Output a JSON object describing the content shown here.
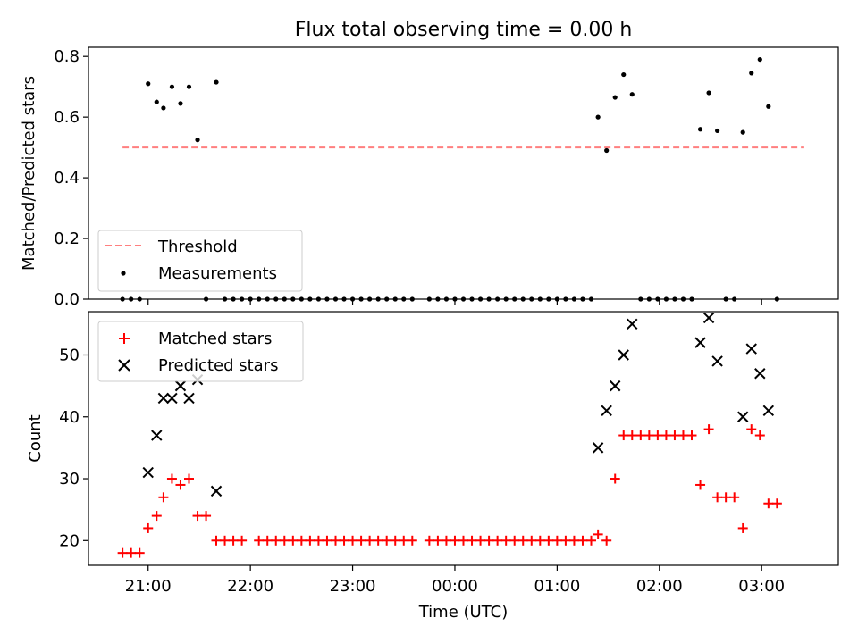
{
  "title": "Flux total observing time = 0.00 h",
  "chart_data": [
    {
      "type": "scatter",
      "title": "Flux total observing time = 0.00 h",
      "xlabel": "",
      "ylabel": "Matched/Predicted stars",
      "ylim": [
        0,
        0.83
      ],
      "yticks": [
        "0.0",
        "0.2",
        "0.4",
        "0.6",
        "0.8"
      ],
      "threshold": {
        "name": "Threshold",
        "value": 0.5,
        "x_start": -195,
        "x_end": 205,
        "color": "#ff7f7f",
        "style": "dashed"
      },
      "series": [
        {
          "name": "Measurements",
          "color": "#000000",
          "marker": "dot",
          "points": [
            [
              -195,
              0
            ],
            [
              -190,
              0
            ],
            [
              -185,
              0
            ],
            [
              -180,
              0.71
            ],
            [
              -175,
              0.65
            ],
            [
              -171,
              0.63
            ],
            [
              -166,
              0.7
            ],
            [
              -161,
              0.645
            ],
            [
              -156,
              0.7
            ],
            [
              -151,
              0.525
            ],
            [
              -146,
              0
            ],
            [
              -140,
              0.715
            ],
            [
              -135,
              0
            ],
            [
              -130,
              0
            ],
            [
              -125,
              0
            ],
            [
              -120,
              0
            ],
            [
              -115,
              0
            ],
            [
              -110,
              0
            ],
            [
              -105,
              0
            ],
            [
              -100,
              0
            ],
            [
              -95,
              0
            ],
            [
              -90,
              0
            ],
            [
              -85,
              0
            ],
            [
              -80,
              0
            ],
            [
              -75,
              0
            ],
            [
              -70,
              0
            ],
            [
              -65,
              0
            ],
            [
              -60,
              0
            ],
            [
              -55,
              0
            ],
            [
              -50,
              0
            ],
            [
              -45,
              0
            ],
            [
              -40,
              0
            ],
            [
              -35,
              0
            ],
            [
              -30,
              0
            ],
            [
              -25,
              0
            ],
            [
              -15,
              0
            ],
            [
              -10,
              0
            ],
            [
              -5,
              0
            ],
            [
              0,
              0
            ],
            [
              5,
              0
            ],
            [
              10,
              0
            ],
            [
              15,
              0
            ],
            [
              20,
              0
            ],
            [
              25,
              0
            ],
            [
              30,
              0
            ],
            [
              35,
              0
            ],
            [
              40,
              0
            ],
            [
              45,
              0
            ],
            [
              50,
              0
            ],
            [
              55,
              0
            ],
            [
              60,
              0
            ],
            [
              65,
              0
            ],
            [
              70,
              0
            ],
            [
              75,
              0
            ],
            [
              80,
              0
            ],
            [
              84,
              0.6
            ],
            [
              89,
              0.49
            ],
            [
              94,
              0.665
            ],
            [
              99,
              0.74
            ],
            [
              104,
              0.675
            ],
            [
              109,
              0
            ],
            [
              114,
              0
            ],
            [
              119,
              0
            ],
            [
              124,
              0
            ],
            [
              129,
              0
            ],
            [
              134,
              0
            ],
            [
              139,
              0
            ],
            [
              144,
              0.56
            ],
            [
              149,
              0.68
            ],
            [
              154,
              0.555
            ],
            [
              159,
              0
            ],
            [
              164,
              0
            ],
            [
              169,
              0.55
            ],
            [
              174,
              0.745
            ],
            [
              179,
              0.79
            ],
            [
              184,
              0.635
            ],
            [
              189,
              0
            ]
          ]
        }
      ],
      "legend": [
        "Threshold",
        "Measurements"
      ],
      "legend_position": "lower-left"
    },
    {
      "type": "scatter",
      "xlabel": "Time (UTC)",
      "ylabel": "Count",
      "ylim": [
        16,
        57
      ],
      "yticks": [
        "20",
        "30",
        "40",
        "50"
      ],
      "xticks": [
        "21:00",
        "22:00",
        "23:00",
        "00:00",
        "01:00",
        "02:00",
        "03:00"
      ],
      "x_unit": "minutes relative to 00:00 UTC",
      "xlim": [
        -215,
        225
      ],
      "series": [
        {
          "name": "Matched stars",
          "color": "#ff0000",
          "marker": "plus",
          "points": [
            [
              -195,
              18
            ],
            [
              -190,
              18
            ],
            [
              -185,
              18
            ],
            [
              -180,
              22
            ],
            [
              -175,
              24
            ],
            [
              -171,
              27
            ],
            [
              -166,
              30
            ],
            [
              -161,
              29
            ],
            [
              -156,
              30
            ],
            [
              -151,
              24
            ],
            [
              -146,
              24
            ],
            [
              -140,
              20
            ],
            [
              -135,
              20
            ],
            [
              -130,
              20
            ],
            [
              -125,
              20
            ],
            [
              -115,
              20
            ],
            [
              -110,
              20
            ],
            [
              -105,
              20
            ],
            [
              -100,
              20
            ],
            [
              -95,
              20
            ],
            [
              -90,
              20
            ],
            [
              -85,
              20
            ],
            [
              -80,
              20
            ],
            [
              -75,
              20
            ],
            [
              -70,
              20
            ],
            [
              -65,
              20
            ],
            [
              -60,
              20
            ],
            [
              -55,
              20
            ],
            [
              -50,
              20
            ],
            [
              -45,
              20
            ],
            [
              -40,
              20
            ],
            [
              -35,
              20
            ],
            [
              -30,
              20
            ],
            [
              -25,
              20
            ],
            [
              -15,
              20
            ],
            [
              -10,
              20
            ],
            [
              -5,
              20
            ],
            [
              0,
              20
            ],
            [
              5,
              20
            ],
            [
              10,
              20
            ],
            [
              15,
              20
            ],
            [
              20,
              20
            ],
            [
              25,
              20
            ],
            [
              30,
              20
            ],
            [
              35,
              20
            ],
            [
              40,
              20
            ],
            [
              45,
              20
            ],
            [
              50,
              20
            ],
            [
              55,
              20
            ],
            [
              60,
              20
            ],
            [
              65,
              20
            ],
            [
              70,
              20
            ],
            [
              75,
              20
            ],
            [
              80,
              20
            ],
            [
              84,
              21
            ],
            [
              89,
              20
            ],
            [
              94,
              30
            ],
            [
              99,
              37
            ],
            [
              104,
              37
            ],
            [
              109,
              37
            ],
            [
              114,
              37
            ],
            [
              119,
              37
            ],
            [
              124,
              37
            ],
            [
              129,
              37
            ],
            [
              134,
              37
            ],
            [
              139,
              37
            ],
            [
              144,
              29
            ],
            [
              149,
              38
            ],
            [
              154,
              27
            ],
            [
              159,
              27
            ],
            [
              164,
              27
            ],
            [
              169,
              22
            ],
            [
              174,
              38
            ],
            [
              179,
              37
            ],
            [
              184,
              26
            ],
            [
              189,
              26
            ]
          ]
        },
        {
          "name": "Predicted stars",
          "color": "#000000",
          "marker": "x",
          "points": [
            [
              -180,
              31
            ],
            [
              -175,
              37
            ],
            [
              -171,
              43
            ],
            [
              -166,
              43
            ],
            [
              -161,
              45
            ],
            [
              -156,
              43
            ],
            [
              -151,
              46
            ],
            [
              -140,
              28
            ],
            [
              84,
              35
            ],
            [
              89,
              41
            ],
            [
              94,
              45
            ],
            [
              99,
              50
            ],
            [
              104,
              55
            ],
            [
              144,
              52
            ],
            [
              149,
              56
            ],
            [
              154,
              49
            ],
            [
              169,
              40
            ],
            [
              174,
              51
            ],
            [
              179,
              47
            ],
            [
              184,
              41
            ]
          ]
        }
      ],
      "legend": [
        "Matched stars",
        "Predicted stars"
      ],
      "legend_position": "upper-left"
    }
  ]
}
